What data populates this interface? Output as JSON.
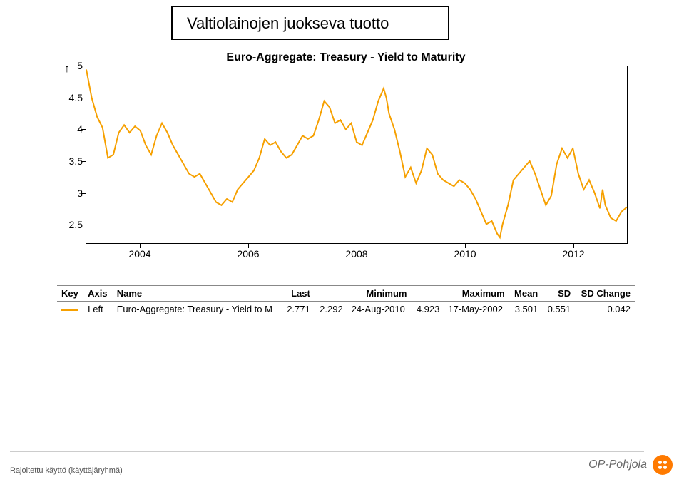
{
  "title_box": "Valtiolainojen juokseva tuotto",
  "chart": {
    "type": "line",
    "title": "Euro-Aggregate: Treasury - Yield to Maturity",
    "x_min": 2003.0,
    "x_max": 2013.0,
    "x_ticks": [
      2004,
      2006,
      2008,
      2010,
      2012
    ],
    "y_min": 2.2,
    "y_max": 5.0,
    "y_ticks": [
      2.5,
      3,
      3.5,
      4,
      4.5,
      5
    ],
    "line_color": "#f6a000",
    "line_width": 2,
    "border_color": "#000000",
    "background_color": "#ffffff",
    "series": [
      [
        2003.0,
        4.95
      ],
      [
        2003.1,
        4.5
      ],
      [
        2003.2,
        4.2
      ],
      [
        2003.3,
        4.03
      ],
      [
        2003.4,
        3.55
      ],
      [
        2003.5,
        3.6
      ],
      [
        2003.6,
        3.95
      ],
      [
        2003.7,
        4.07
      ],
      [
        2003.8,
        3.95
      ],
      [
        2003.9,
        4.05
      ],
      [
        2004.0,
        3.98
      ],
      [
        2004.1,
        3.75
      ],
      [
        2004.2,
        3.6
      ],
      [
        2004.3,
        3.9
      ],
      [
        2004.4,
        4.1
      ],
      [
        2004.5,
        3.95
      ],
      [
        2004.6,
        3.75
      ],
      [
        2004.7,
        3.6
      ],
      [
        2004.8,
        3.45
      ],
      [
        2004.9,
        3.3
      ],
      [
        2005.0,
        3.25
      ],
      [
        2005.1,
        3.3
      ],
      [
        2005.2,
        3.15
      ],
      [
        2005.3,
        3.0
      ],
      [
        2005.4,
        2.85
      ],
      [
        2005.5,
        2.8
      ],
      [
        2005.6,
        2.9
      ],
      [
        2005.7,
        2.85
      ],
      [
        2005.8,
        3.05
      ],
      [
        2005.9,
        3.15
      ],
      [
        2006.0,
        3.25
      ],
      [
        2006.1,
        3.35
      ],
      [
        2006.2,
        3.55
      ],
      [
        2006.3,
        3.85
      ],
      [
        2006.4,
        3.75
      ],
      [
        2006.5,
        3.8
      ],
      [
        2006.6,
        3.65
      ],
      [
        2006.7,
        3.55
      ],
      [
        2006.8,
        3.6
      ],
      [
        2006.9,
        3.75
      ],
      [
        2007.0,
        3.9
      ],
      [
        2007.1,
        3.85
      ],
      [
        2007.2,
        3.9
      ],
      [
        2007.3,
        4.15
      ],
      [
        2007.4,
        4.45
      ],
      [
        2007.5,
        4.35
      ],
      [
        2007.6,
        4.1
      ],
      [
        2007.7,
        4.15
      ],
      [
        2007.8,
        4.0
      ],
      [
        2007.9,
        4.1
      ],
      [
        2008.0,
        3.8
      ],
      [
        2008.1,
        3.75
      ],
      [
        2008.2,
        3.95
      ],
      [
        2008.3,
        4.15
      ],
      [
        2008.4,
        4.45
      ],
      [
        2008.5,
        4.65
      ],
      [
        2008.55,
        4.5
      ],
      [
        2008.6,
        4.25
      ],
      [
        2008.7,
        4.0
      ],
      [
        2008.8,
        3.65
      ],
      [
        2008.9,
        3.25
      ],
      [
        2009.0,
        3.4
      ],
      [
        2009.1,
        3.15
      ],
      [
        2009.2,
        3.35
      ],
      [
        2009.3,
        3.7
      ],
      [
        2009.4,
        3.6
      ],
      [
        2009.5,
        3.3
      ],
      [
        2009.6,
        3.2
      ],
      [
        2009.7,
        3.15
      ],
      [
        2009.8,
        3.1
      ],
      [
        2009.9,
        3.2
      ],
      [
        2010.0,
        3.15
      ],
      [
        2010.1,
        3.05
      ],
      [
        2010.2,
        2.9
      ],
      [
        2010.3,
        2.7
      ],
      [
        2010.4,
        2.5
      ],
      [
        2010.5,
        2.55
      ],
      [
        2010.6,
        2.35
      ],
      [
        2010.65,
        2.29
      ],
      [
        2010.7,
        2.5
      ],
      [
        2010.8,
        2.8
      ],
      [
        2010.9,
        3.2
      ],
      [
        2011.0,
        3.3
      ],
      [
        2011.1,
        3.4
      ],
      [
        2011.2,
        3.5
      ],
      [
        2011.3,
        3.3
      ],
      [
        2011.4,
        3.05
      ],
      [
        2011.5,
        2.8
      ],
      [
        2011.6,
        2.95
      ],
      [
        2011.7,
        3.45
      ],
      [
        2011.8,
        3.7
      ],
      [
        2011.9,
        3.55
      ],
      [
        2012.0,
        3.7
      ],
      [
        2012.1,
        3.3
      ],
      [
        2012.2,
        3.05
      ],
      [
        2012.3,
        3.2
      ],
      [
        2012.4,
        3.0
      ],
      [
        2012.5,
        2.75
      ],
      [
        2012.55,
        3.05
      ],
      [
        2012.6,
        2.8
      ],
      [
        2012.7,
        2.6
      ],
      [
        2012.8,
        2.55
      ],
      [
        2012.9,
        2.7
      ],
      [
        2013.0,
        2.77
      ]
    ]
  },
  "table": {
    "headers": {
      "key": "Key",
      "axis": "Axis",
      "name": "Name",
      "last": "Last",
      "minimum": "Minimum",
      "maximum": "Maximum",
      "mean": "Mean",
      "sd": "SD",
      "sd_change": "SD Change"
    },
    "row": {
      "key_color": "#f6a000",
      "axis": "Left",
      "name": "Euro-Aggregate: Treasury - Yield to M",
      "last": "2.771",
      "min_val": "2.292",
      "min_date": "24-Aug-2010",
      "max_val": "4.923",
      "max_date": "17-May-2002",
      "mean": "3.501",
      "sd": "0.551",
      "sd_change": "0.042"
    }
  },
  "footer": "Rajoitettu käyttö (käyttäjäryhmä)",
  "logo_text": "OP-Pohjola"
}
